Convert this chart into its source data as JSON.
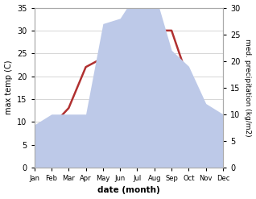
{
  "months": [
    "Jan",
    "Feb",
    "Mar",
    "Apr",
    "May",
    "Jun",
    "Jul",
    "Aug",
    "Sep",
    "Oct",
    "Nov",
    "Dec"
  ],
  "x": [
    1,
    2,
    3,
    4,
    5,
    6,
    7,
    8,
    9,
    10,
    11,
    12
  ],
  "temperature": [
    3,
    9,
    13,
    22,
    24,
    32,
    32,
    30,
    30,
    19,
    12,
    11
  ],
  "precipitation": [
    8,
    10,
    10,
    10,
    27,
    28,
    33,
    33,
    22,
    19,
    12,
    10
  ],
  "temp_color": "#b03030",
  "precip_fill_color": "#bdc9e8",
  "temp_ylim": [
    0,
    35
  ],
  "precip_ylim": [
    0,
    30
  ],
  "temp_yticks": [
    0,
    5,
    10,
    15,
    20,
    25,
    30,
    35
  ],
  "precip_yticks": [
    0,
    5,
    10,
    15,
    20,
    25,
    30
  ],
  "xlabel": "date (month)",
  "ylabel_left": "max temp (C)",
  "ylabel_right": "med. precipitation (kg/m2)",
  "grid_color": "#d0d0d0"
}
